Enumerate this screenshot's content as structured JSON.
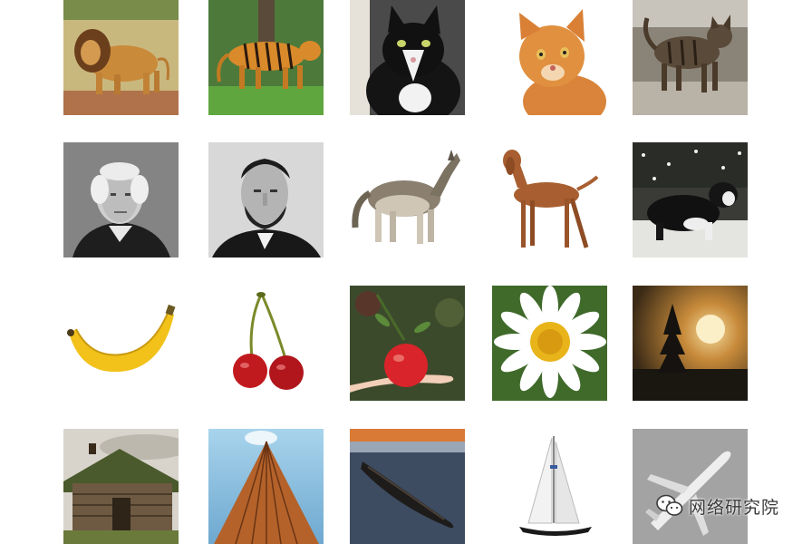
{
  "grid": {
    "rows": [
      [
        "lion",
        "tiger",
        "tuxedo-cat",
        "orange-cat",
        "tabby-cat"
      ],
      [
        "george-washington-portrait",
        "abraham-lincoln-portrait",
        "wolf",
        "vizsla-dog",
        "border-collie-in-snow"
      ],
      [
        "banana",
        "cherries",
        "apple-in-hand",
        "daisy",
        "tree-at-sunset"
      ],
      [
        "sod-roof-cabin",
        "skyscraper",
        "canoe-on-water",
        "sailboat",
        "airplane"
      ]
    ]
  },
  "watermark": {
    "icon": "wechat-icon",
    "text": "网络研究院"
  }
}
